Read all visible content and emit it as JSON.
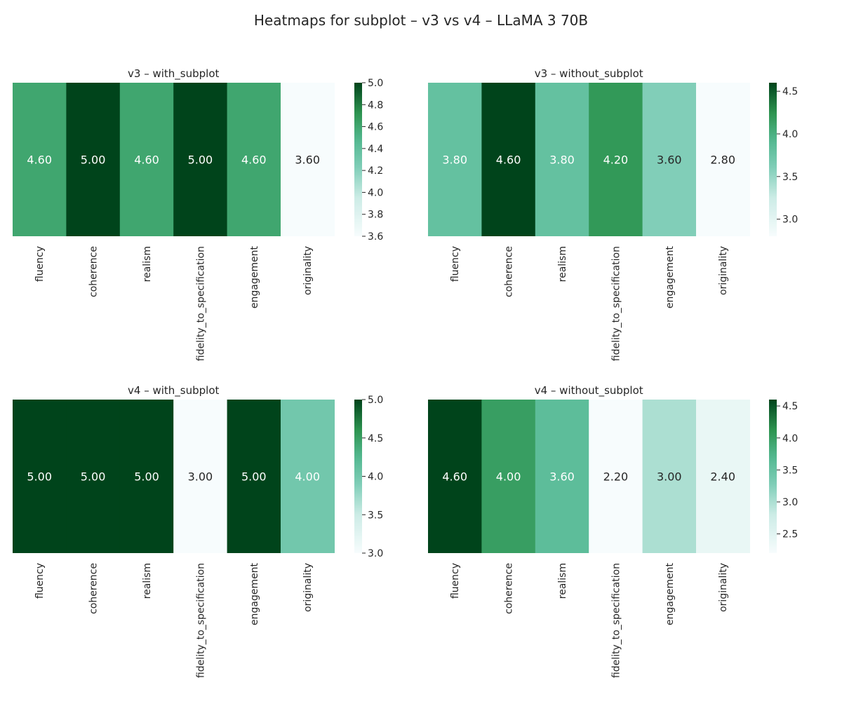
{
  "figure": {
    "title": "Heatmaps for subplot – v3 vs v4 – LLaMA 3 70B"
  },
  "chart_data": [
    {
      "type": "heatmap",
      "title": "v3 – with_subplot",
      "categories": [
        "fluency",
        "coherence",
        "realism",
        "fidelity_to_specification",
        "engagement",
        "originality"
      ],
      "values": [
        4.6,
        5.0,
        4.6,
        5.0,
        4.6,
        3.6
      ],
      "labels": [
        "4.60",
        "5.00",
        "4.60",
        "5.00",
        "4.60",
        "3.60"
      ],
      "colorbar": {
        "min": 3.6,
        "max": 5.0,
        "ticks": [
          "3.6",
          "3.8",
          "4.0",
          "4.2",
          "4.4",
          "4.6",
          "4.8",
          "5.0"
        ]
      },
      "colormap": "Greens-BuGn"
    },
    {
      "type": "heatmap",
      "title": "v3 – without_subplot",
      "categories": [
        "fluency",
        "coherence",
        "realism",
        "fidelity_to_specification",
        "engagement",
        "originality"
      ],
      "values": [
        3.8,
        4.6,
        3.8,
        4.2,
        3.6,
        2.8
      ],
      "labels": [
        "3.80",
        "4.60",
        "3.80",
        "4.20",
        "3.60",
        "2.80"
      ],
      "colorbar": {
        "min": 2.8,
        "max": 4.6,
        "ticks": [
          "3.0",
          "3.5",
          "4.0",
          "4.5"
        ]
      },
      "colormap": "Greens-BuGn"
    },
    {
      "type": "heatmap",
      "title": "v4 – with_subplot",
      "categories": [
        "fluency",
        "coherence",
        "realism",
        "fidelity_to_specification",
        "engagement",
        "originality"
      ],
      "values": [
        5.0,
        5.0,
        5.0,
        3.0,
        5.0,
        4.0
      ],
      "labels": [
        "5.00",
        "5.00",
        "5.00",
        "3.00",
        "5.00",
        "4.00"
      ],
      "colorbar": {
        "min": 3.0,
        "max": 5.0,
        "ticks": [
          "3.0",
          "3.5",
          "4.0",
          "4.5",
          "5.0"
        ]
      },
      "colormap": "Greens-BuGn"
    },
    {
      "type": "heatmap",
      "title": "v4 – without_subplot",
      "categories": [
        "fluency",
        "coherence",
        "realism",
        "fidelity_to_specification",
        "engagement",
        "originality"
      ],
      "values": [
        4.6,
        4.0,
        3.6,
        2.2,
        3.0,
        2.4
      ],
      "labels": [
        "4.60",
        "4.00",
        "3.60",
        "2.20",
        "3.00",
        "2.40"
      ],
      "colorbar": {
        "min": 2.2,
        "max": 4.6,
        "ticks": [
          "2.5",
          "3.0",
          "3.5",
          "4.0",
          "4.5"
        ]
      },
      "colormap": "Greens-BuGn"
    }
  ]
}
